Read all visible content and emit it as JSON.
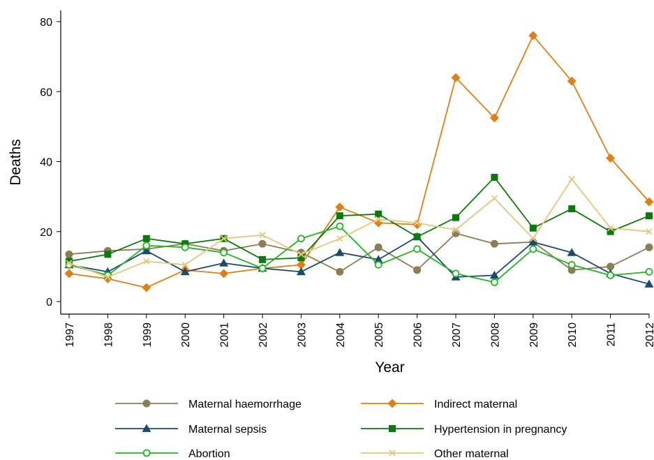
{
  "chart_data": {
    "type": "line",
    "xlabel": "Year",
    "ylabel": "Deaths",
    "x": [
      "1997",
      "1998",
      "1999",
      "2000",
      "2001",
      "2002",
      "2003",
      "2004",
      "2005",
      "2006",
      "2007",
      "2008",
      "2009",
      "2010",
      "2011",
      "2012"
    ],
    "ylim": [
      0,
      80
    ],
    "yticks": [
      "0",
      "20",
      "40",
      "60",
      "80"
    ],
    "grid": false,
    "legend_position": "bottom",
    "series": [
      {
        "name": "Maternal haemorrhage",
        "color": "#8c7d55",
        "marker": "circle",
        "values": [
          13.5,
          14.5,
          15,
          16.5,
          14.5,
          16.5,
          14,
          8.5,
          15.5,
          9,
          19.5,
          16.5,
          17,
          9,
          10,
          15.5
        ]
      },
      {
        "name": "Indirect maternal",
        "color": "#e07f13",
        "marker": "diamond",
        "values": [
          8,
          6.5,
          4,
          9,
          8,
          9.5,
          10.5,
          27,
          22.5,
          22,
          64,
          52.5,
          76,
          63,
          41,
          28.5
        ]
      },
      {
        "name": "Maternal sepsis",
        "color": "#1a4a6e",
        "marker": "triangle",
        "values": [
          10.5,
          8.5,
          14.5,
          8.5,
          11,
          9.5,
          8.5,
          14,
          12,
          18.5,
          7,
          7.5,
          17,
          14,
          8,
          5
        ]
      },
      {
        "name": "Hypertension in pregnancy",
        "color": "#0a7a0a",
        "marker": "square",
        "values": [
          11.5,
          13.5,
          18,
          16.5,
          18,
          12,
          12.5,
          24.5,
          25,
          18.5,
          24,
          35.5,
          21,
          26.5,
          20,
          24.5
        ]
      },
      {
        "name": "Abortion",
        "color": "#22b422",
        "marker": "hollow-circle",
        "values": [
          10.5,
          7.5,
          16,
          15.5,
          14,
          9.5,
          18,
          21.5,
          10.5,
          15,
          8,
          5.5,
          15,
          10.5,
          7.5,
          8.5
        ]
      },
      {
        "name": "Other maternal",
        "color": "#e3c87a",
        "marker": "x",
        "values": [
          11,
          7,
          11.5,
          10.5,
          18,
          19,
          13.5,
          18,
          23.5,
          22.5,
          20.5,
          29.5,
          18,
          35,
          21,
          20
        ]
      }
    ]
  }
}
